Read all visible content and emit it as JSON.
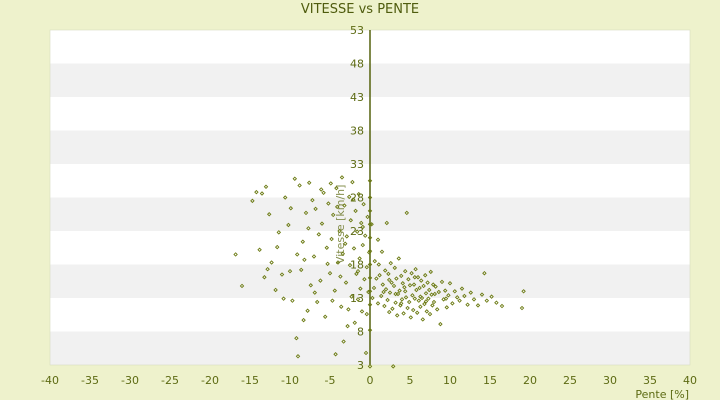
{
  "chart_data": {
    "type": "scatter",
    "title": "VITESSE vs PENTE",
    "xlabel": "Pente [%]",
    "ylabel": "Vitesse [km/h]",
    "xlim": [
      -40,
      40
    ],
    "ylim": [
      3,
      53
    ],
    "xticks": [
      "-40",
      "-35",
      "-30",
      "-25",
      "-20",
      "-15",
      "-10",
      "-5",
      "0",
      "5",
      "10",
      "15",
      "20",
      "25",
      "30",
      "35",
      "40"
    ],
    "yticks": [
      "3",
      "8",
      "13",
      "18",
      "23",
      "28",
      "33",
      "38",
      "43",
      "48",
      "53"
    ],
    "grid": "alternating horizontal bands",
    "colors": {
      "background": "#eef2cc",
      "band_light": "#ffffff",
      "band_dark": "#f1f1f1",
      "points": "#6b7a12",
      "axis": "#55620e"
    },
    "points": [
      [
        -16.8,
        19.5
      ],
      [
        -16.0,
        14.8
      ],
      [
        -14.7,
        27.5
      ],
      [
        -14.2,
        28.8
      ],
      [
        -13.8,
        20.2
      ],
      [
        -13.5,
        28.6
      ],
      [
        -13.2,
        16.1
      ],
      [
        -13.0,
        29.6
      ],
      [
        -12.6,
        25.5
      ],
      [
        -12.3,
        18.3
      ],
      [
        -11.8,
        14.2
      ],
      [
        -11.4,
        22.8
      ],
      [
        -11.0,
        16.5
      ],
      [
        -10.6,
        28.0
      ],
      [
        -10.2,
        23.9
      ],
      [
        -10.0,
        17.0
      ],
      [
        -9.7,
        12.6
      ],
      [
        -9.4,
        30.8
      ],
      [
        -9.2,
        7.0
      ],
      [
        -9.0,
        4.3
      ],
      [
        -8.8,
        29.8
      ],
      [
        -8.6,
        17.2
      ],
      [
        -8.4,
        21.4
      ],
      [
        -8.2,
        18.7
      ],
      [
        -8.0,
        25.7
      ],
      [
        -7.8,
        11.1
      ],
      [
        -7.6,
        30.2
      ],
      [
        -7.4,
        14.9
      ],
      [
        -7.2,
        27.6
      ],
      [
        -7.0,
        19.2
      ],
      [
        -6.8,
        26.3
      ],
      [
        -6.6,
        12.4
      ],
      [
        -6.4,
        22.5
      ],
      [
        -6.2,
        15.6
      ],
      [
        -6.0,
        24.1
      ],
      [
        -5.8,
        28.7
      ],
      [
        -5.6,
        10.2
      ],
      [
        -5.4,
        20.5
      ],
      [
        -5.2,
        27.1
      ],
      [
        -5.0,
        16.7
      ],
      [
        -4.9,
        30.1
      ],
      [
        -4.8,
        21.8
      ],
      [
        -4.6,
        25.4
      ],
      [
        -4.4,
        14.1
      ],
      [
        -4.3,
        4.6
      ],
      [
        -4.2,
        29.4
      ],
      [
        -4.0,
        18.3
      ],
      [
        -3.8,
        23.0
      ],
      [
        -3.6,
        11.7
      ],
      [
        -3.5,
        31.0
      ],
      [
        -3.4,
        19.6
      ],
      [
        -3.3,
        6.5
      ],
      [
        -3.2,
        26.8
      ],
      [
        -3.0,
        15.3
      ],
      [
        -2.9,
        22.2
      ],
      [
        -2.8,
        8.8
      ],
      [
        -2.6,
        28.1
      ],
      [
        -2.5,
        17.9
      ],
      [
        -2.4,
        24.6
      ],
      [
        -2.3,
        13.2
      ],
      [
        -2.2,
        30.3
      ],
      [
        -2.0,
        20.4
      ],
      [
        -1.9,
        9.3
      ],
      [
        -1.8,
        26.0
      ],
      [
        -1.7,
        16.6
      ],
      [
        -1.6,
        22.9
      ],
      [
        -1.5,
        12.8
      ],
      [
        -1.4,
        28.5
      ],
      [
        -1.3,
        18.9
      ],
      [
        -1.2,
        14.4
      ],
      [
        -1.1,
        24.2
      ],
      [
        -1.0,
        11.0
      ],
      [
        -0.9,
        20.9
      ],
      [
        -0.8,
        27.0
      ],
      [
        -0.7,
        15.8
      ],
      [
        -0.6,
        22.3
      ],
      [
        -0.5,
        4.8
      ],
      [
        -0.4,
        17.6
      ],
      [
        -0.3,
        25.1
      ],
      [
        -0.2,
        13.9
      ],
      [
        -0.1,
        19.8
      ],
      [
        0.0,
        2.8
      ],
      [
        0.0,
        8.2
      ],
      [
        0.0,
        12.0
      ],
      [
        0.0,
        14.0
      ],
      [
        0.0,
        16.0
      ],
      [
        0.0,
        18.0
      ],
      [
        0.0,
        20.0
      ],
      [
        0.0,
        22.0
      ],
      [
        0.0,
        24.0
      ],
      [
        0.0,
        26.0
      ],
      [
        0.0,
        28.0
      ],
      [
        0.0,
        30.5
      ],
      [
        0.2,
        24.0
      ],
      [
        0.3,
        13.0
      ],
      [
        0.5,
        14.5
      ],
      [
        0.6,
        18.5
      ],
      [
        0.8,
        15.9
      ],
      [
        1.0,
        12.2
      ],
      [
        1.0,
        21.7
      ],
      [
        1.2,
        16.4
      ],
      [
        1.4,
        13.3
      ],
      [
        1.5,
        19.9
      ],
      [
        1.6,
        15.0
      ],
      [
        1.8,
        11.8
      ],
      [
        1.9,
        17.1
      ],
      [
        2.0,
        14.3
      ],
      [
        2.1,
        24.2
      ],
      [
        2.2,
        12.7
      ],
      [
        2.3,
        16.6
      ],
      [
        2.4,
        10.9
      ],
      [
        2.5,
        13.8
      ],
      [
        2.6,
        18.2
      ],
      [
        2.7,
        15.3
      ],
      [
        2.8,
        11.4
      ],
      [
        2.9,
        2.8
      ],
      [
        3.0,
        14.8
      ],
      [
        3.1,
        17.5
      ],
      [
        3.2,
        12.3
      ],
      [
        3.3,
        15.9
      ],
      [
        3.4,
        10.4
      ],
      [
        3.5,
        13.6
      ],
      [
        3.6,
        18.9
      ],
      [
        3.7,
        14.1
      ],
      [
        3.8,
        11.9
      ],
      [
        3.9,
        16.3
      ],
      [
        4.0,
        12.8
      ],
      [
        4.1,
        15.2
      ],
      [
        4.2,
        10.7
      ],
      [
        4.3,
        14.6
      ],
      [
        4.4,
        17.0
      ],
      [
        4.5,
        13.1
      ],
      [
        4.6,
        25.7
      ],
      [
        4.7,
        11.5
      ],
      [
        4.8,
        15.8
      ],
      [
        4.9,
        12.4
      ],
      [
        5.0,
        14.9
      ],
      [
        5.1,
        10.1
      ],
      [
        5.2,
        16.7
      ],
      [
        5.3,
        13.4
      ],
      [
        5.4,
        11.2
      ],
      [
        5.5,
        15.0
      ],
      [
        5.6,
        12.9
      ],
      [
        5.7,
        17.3
      ],
      [
        5.8,
        14.2
      ],
      [
        5.9,
        10.8
      ],
      [
        6.0,
        16.1
      ],
      [
        6.1,
        12.6
      ],
      [
        6.2,
        14.5
      ],
      [
        6.3,
        11.7
      ],
      [
        6.4,
        15.6
      ],
      [
        6.5,
        13.0
      ],
      [
        6.6,
        9.8
      ],
      [
        6.7,
        14.8
      ],
      [
        6.8,
        12.1
      ],
      [
        6.9,
        16.4
      ],
      [
        7.0,
        13.7
      ],
      [
        7.1,
        11.0
      ],
      [
        7.2,
        15.3
      ],
      [
        7.3,
        12.9
      ],
      [
        7.4,
        14.2
      ],
      [
        7.5,
        10.6
      ],
      [
        7.6,
        16.9
      ],
      [
        7.7,
        13.5
      ],
      [
        7.8,
        11.9
      ],
      [
        7.9,
        15.0
      ],
      [
        8.0,
        12.4
      ],
      [
        8.2,
        14.7
      ],
      [
        8.4,
        11.3
      ],
      [
        8.6,
        13.9
      ],
      [
        8.8,
        9.1
      ],
      [
        9.0,
        15.4
      ],
      [
        9.2,
        12.8
      ],
      [
        9.4,
        14.1
      ],
      [
        9.6,
        11.6
      ],
      [
        9.8,
        13.4
      ],
      [
        10.0,
        15.2
      ],
      [
        10.3,
        12.2
      ],
      [
        10.6,
        14.0
      ],
      [
        10.9,
        13.1
      ],
      [
        11.2,
        12.6
      ],
      [
        11.5,
        14.4
      ],
      [
        11.8,
        13.3
      ],
      [
        12.2,
        12.0
      ],
      [
        12.6,
        13.8
      ],
      [
        13.0,
        12.8
      ],
      [
        13.5,
        11.9
      ],
      [
        14.0,
        13.5
      ],
      [
        14.3,
        16.7
      ],
      [
        14.6,
        12.6
      ],
      [
        15.2,
        13.2
      ],
      [
        15.8,
        12.3
      ],
      [
        16.5,
        11.8
      ],
      [
        19.0,
        11.5
      ],
      [
        19.2,
        14.0
      ],
      [
        -12.8,
        17.3
      ],
      [
        -11.6,
        20.6
      ],
      [
        -10.8,
        12.9
      ],
      [
        -9.9,
        26.4
      ],
      [
        -9.1,
        19.5
      ],
      [
        -8.3,
        9.7
      ],
      [
        -7.7,
        23.4
      ],
      [
        -6.9,
        13.8
      ],
      [
        -6.1,
        29.2
      ],
      [
        -5.3,
        18.1
      ],
      [
        -4.7,
        12.6
      ],
      [
        -4.1,
        26.6
      ],
      [
        -3.7,
        16.2
      ],
      [
        -3.1,
        21.1
      ],
      [
        -2.7,
        11.3
      ],
      [
        -2.1,
        27.7
      ],
      [
        -1.5,
        17.0
      ],
      [
        -0.9,
        23.6
      ],
      [
        -0.4,
        10.6
      ],
      [
        1.1,
        18.0
      ],
      [
        1.7,
        13.9
      ],
      [
        2.4,
        15.7
      ],
      [
        3.2,
        13.6
      ],
      [
        3.9,
        12.2
      ],
      [
        4.4,
        14.0
      ],
      [
        5.6,
        16.1
      ],
      [
        6.3,
        13.2
      ],
      [
        7.0,
        12.5
      ],
      [
        8.1,
        13.6
      ],
      [
        9.5,
        12.9
      ]
    ]
  }
}
